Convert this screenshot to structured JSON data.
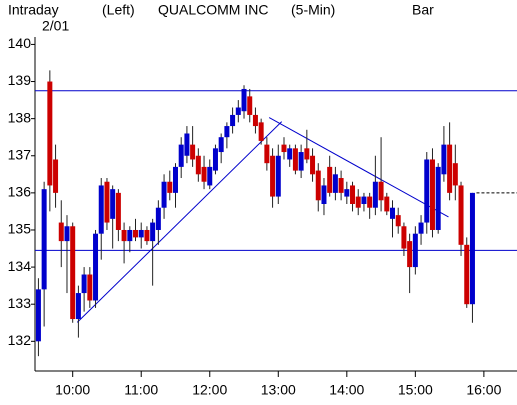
{
  "chart_data": {
    "type": "candlestick",
    "period": "Intraday",
    "date": "2/01",
    "axis_side": "(Left)",
    "title": "QUALCOMM INC",
    "interval": "(5-Min)",
    "style": "Bar",
    "up_color": "#0000cc",
    "down_color": "#cc0000",
    "line_color": "#0000cc",
    "xlim": [
      567,
      989
    ],
    "ylim": [
      131.2,
      140.2
    ],
    "yticks": [
      132,
      133,
      134,
      135,
      136,
      137,
      138,
      139,
      140
    ],
    "xticks": [
      {
        "value": 600,
        "label": "10:00"
      },
      {
        "value": 660,
        "label": "11:00"
      },
      {
        "value": 720,
        "label": "12:00"
      },
      {
        "value": 780,
        "label": "13:00"
      },
      {
        "value": 840,
        "label": "14:00"
      },
      {
        "value": 900,
        "label": "15:00"
      },
      {
        "value": 960,
        "label": "16:00"
      }
    ],
    "hlines": [
      138.75,
      134.45
    ],
    "trendlines": [
      [
        [
          604,
          132.51
        ],
        [
          783,
          137.92
        ]
      ],
      [
        [
          772,
          138.03
        ],
        [
          929,
          135.35
        ]
      ]
    ],
    "x": [
      570,
      575,
      580,
      585,
      590,
      595,
      600,
      605,
      610,
      615,
      620,
      625,
      630,
      635,
      640,
      645,
      650,
      655,
      660,
      665,
      670,
      675,
      680,
      685,
      690,
      695,
      700,
      705,
      710,
      715,
      720,
      725,
      730,
      735,
      740,
      745,
      750,
      755,
      760,
      765,
      770,
      775,
      780,
      785,
      790,
      795,
      800,
      805,
      810,
      815,
      820,
      825,
      830,
      835,
      840,
      845,
      850,
      855,
      860,
      865,
      870,
      875,
      880,
      885,
      890,
      895,
      900,
      905,
      910,
      915,
      920,
      925,
      930,
      935,
      940,
      945,
      950
    ],
    "open": [
      132.0,
      133.4,
      139.0,
      136.9,
      135.2,
      134.7,
      135.1,
      132.6,
      133.3,
      133.8,
      133.1,
      134.9,
      136.3,
      135.3,
      136.0,
      135.0,
      134.7,
      135.0,
      134.8,
      135.0,
      134.7,
      135.0,
      135.6,
      136.3,
      136.0,
      136.7,
      137.0,
      137.3,
      137.0,
      136.7,
      136.2,
      136.6,
      137.1,
      137.5,
      137.8,
      138.1,
      138.2,
      138.6,
      138.1,
      137.9,
      137.3,
      137.0,
      135.9,
      137.3,
      136.9,
      137.2,
      136.6,
      137.2,
      137.0,
      136.6,
      135.7,
      136.7,
      136.0,
      136.4,
      135.9,
      136.2,
      135.9,
      135.7,
      135.9,
      135.6,
      136.3,
      135.9,
      135.3,
      135.4,
      135.1,
      134.7,
      134.0,
      134.9,
      135.2,
      136.9,
      135.0,
      136.5,
      137.3,
      136.8,
      136.2,
      134.6,
      133.0
    ],
    "high": [
      133.7,
      136.3,
      139.3,
      137.3,
      135.8,
      135.4,
      135.2,
      133.5,
      134.0,
      134.0,
      135.0,
      136.4,
      136.4,
      136.2,
      136.1,
      135.2,
      135.1,
      135.3,
      135.2,
      135.1,
      135.3,
      135.8,
      136.5,
      136.6,
      136.8,
      137.5,
      137.8,
      137.8,
      137.2,
      137.0,
      136.9,
      137.3,
      137.6,
      137.9,
      138.3,
      138.5,
      138.9,
      138.8,
      138.3,
      138.0,
      137.5,
      137.2,
      137.3,
      137.5,
      137.3,
      137.3,
      137.3,
      137.7,
      137.2,
      136.8,
      136.4,
      137.0,
      136.7,
      136.6,
      136.3,
      136.3,
      136.1,
      136.0,
      136.0,
      137.0,
      137.5,
      136.0,
      135.8,
      135.6,
      135.2,
      134.9,
      135.1,
      135.4,
      137.1,
      137.2,
      136.8,
      137.8,
      137.9,
      137.3,
      136.3,
      134.8,
      136.0
    ],
    "low": [
      131.6,
      132.4,
      135.5,
      135.6,
      134.0,
      133.3,
      132.5,
      132.1,
      132.8,
      132.9,
      132.9,
      134.2,
      135.0,
      134.5,
      134.7,
      134.1,
      134.4,
      134.7,
      134.5,
      134.6,
      133.5,
      134.6,
      135.3,
      135.8,
      135.6,
      136.4,
      136.8,
      136.7,
      136.3,
      136.1,
      136.1,
      136.5,
      136.8,
      137.2,
      137.6,
      137.9,
      138.0,
      137.9,
      137.6,
      137.3,
      136.6,
      135.6,
      135.7,
      136.9,
      136.7,
      136.5,
      136.4,
      136.8,
      136.3,
      135.5,
      135.4,
      135.9,
      135.8,
      135.8,
      135.7,
      135.5,
      135.4,
      135.5,
      135.3,
      135.4,
      135.5,
      135.4,
      134.8,
      134.9,
      134.3,
      133.3,
      133.8,
      134.6,
      134.9,
      134.8,
      134.9,
      136.3,
      135.8,
      135.8,
      134.3,
      132.9,
      132.5
    ],
    "close": [
      133.4,
      136.1,
      136.2,
      136.0,
      134.7,
      135.1,
      132.6,
      133.3,
      133.8,
      133.1,
      134.9,
      136.2,
      135.2,
      136.1,
      135.0,
      134.7,
      135.0,
      134.8,
      135.0,
      134.7,
      135.2,
      135.6,
      136.3,
      136.0,
      136.7,
      137.3,
      137.6,
      136.9,
      136.5,
      136.3,
      136.7,
      137.2,
      137.5,
      137.8,
      138.1,
      138.3,
      138.8,
      138.1,
      137.8,
      137.4,
      136.8,
      135.9,
      137.0,
      137.1,
      137.2,
      136.6,
      137.1,
      136.9,
      136.5,
      135.8,
      136.2,
      136.0,
      136.5,
      136.0,
      136.1,
      135.7,
      135.6,
      135.9,
      135.6,
      136.3,
      135.8,
      135.5,
      135.6,
      135.1,
      134.5,
      134.0,
      134.9,
      135.2,
      136.9,
      135.0,
      136.7,
      137.3,
      136.0,
      136.2,
      134.6,
      133.0,
      136.0
    ]
  }
}
